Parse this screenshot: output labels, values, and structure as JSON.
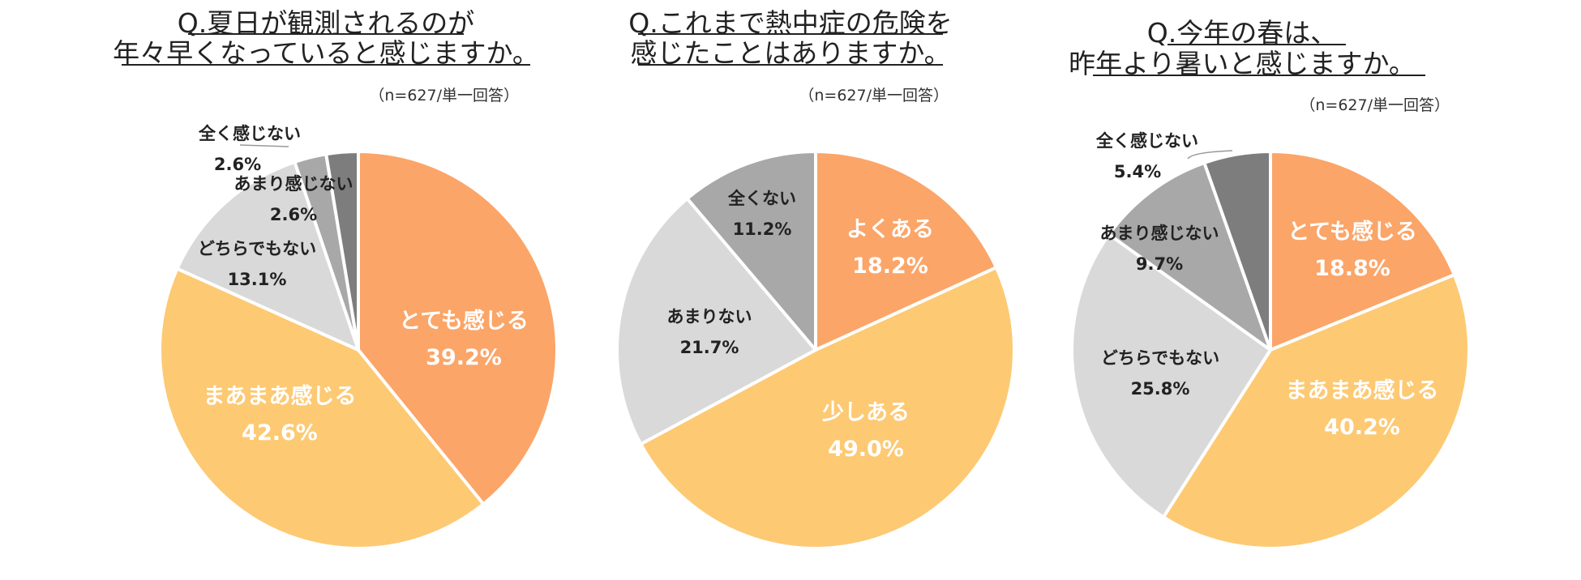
{
  "colors": {
    "very": "#fba568",
    "somewhat": "#fdc973",
    "neutral": "#d9d9d9",
    "little": "#a8a8a8",
    "none": "#7d7d7d",
    "slice_border": "#ffffff",
    "label_light": "#ffffff",
    "label_dark": "#222222"
  },
  "chart_data": [
    {
      "type": "pie",
      "title": [
        "Q.夏日が観測されるのが",
        "年々早くなっていると感じますか。"
      ],
      "note": "（n=627/単一回答）",
      "slices": [
        {
          "label": "とても感じる",
          "value": 39.2,
          "value_label": "39.2%",
          "color_key": "very"
        },
        {
          "label": "まあまあ感じる",
          "value": 42.6,
          "value_label": "42.6%",
          "color_key": "somewhat"
        },
        {
          "label": "どちらでもない",
          "value": 13.1,
          "value_label": "13.1%",
          "color_key": "neutral"
        },
        {
          "label": "あまり感じない",
          "value": 2.6,
          "value_label": "2.6%",
          "color_key": "little"
        },
        {
          "label": "全く感じない",
          "value": 2.6,
          "value_label": "2.6%",
          "color_key": "none"
        }
      ]
    },
    {
      "type": "pie",
      "title": [
        "Q.これまで熱中症の危険を",
        "感じたことはありますか。"
      ],
      "note": "（n=627/単一回答）",
      "slices": [
        {
          "label": "よくある",
          "value": 18.2,
          "value_label": "18.2%",
          "color_key": "very"
        },
        {
          "label": "少しある",
          "value": 49.0,
          "value_label": "49.0%",
          "color_key": "somewhat"
        },
        {
          "label": "あまりない",
          "value": 21.7,
          "value_label": "21.7%",
          "color_key": "neutral"
        },
        {
          "label": "全くない",
          "value": 11.2,
          "value_label": "11.2%",
          "color_key": "little"
        }
      ]
    },
    {
      "type": "pie",
      "title": [
        "Q.今年の春は、",
        "昨年より暑いと感じますか。"
      ],
      "note": "（n=627/単一回答）",
      "slices": [
        {
          "label": "とても感じる",
          "value": 18.8,
          "value_label": "18.8%",
          "color_key": "very"
        },
        {
          "label": "まあまあ感じる",
          "value": 40.2,
          "value_label": "40.2%",
          "color_key": "somewhat"
        },
        {
          "label": "どちらでもない",
          "value": 25.8,
          "value_label": "25.8%",
          "color_key": "neutral"
        },
        {
          "label": "あまり感じない",
          "value": 9.7,
          "value_label": "9.7%",
          "color_key": "little"
        },
        {
          "label": "全く感じない",
          "value": 5.4,
          "value_label": "5.4%",
          "color_key": "none"
        }
      ]
    }
  ]
}
